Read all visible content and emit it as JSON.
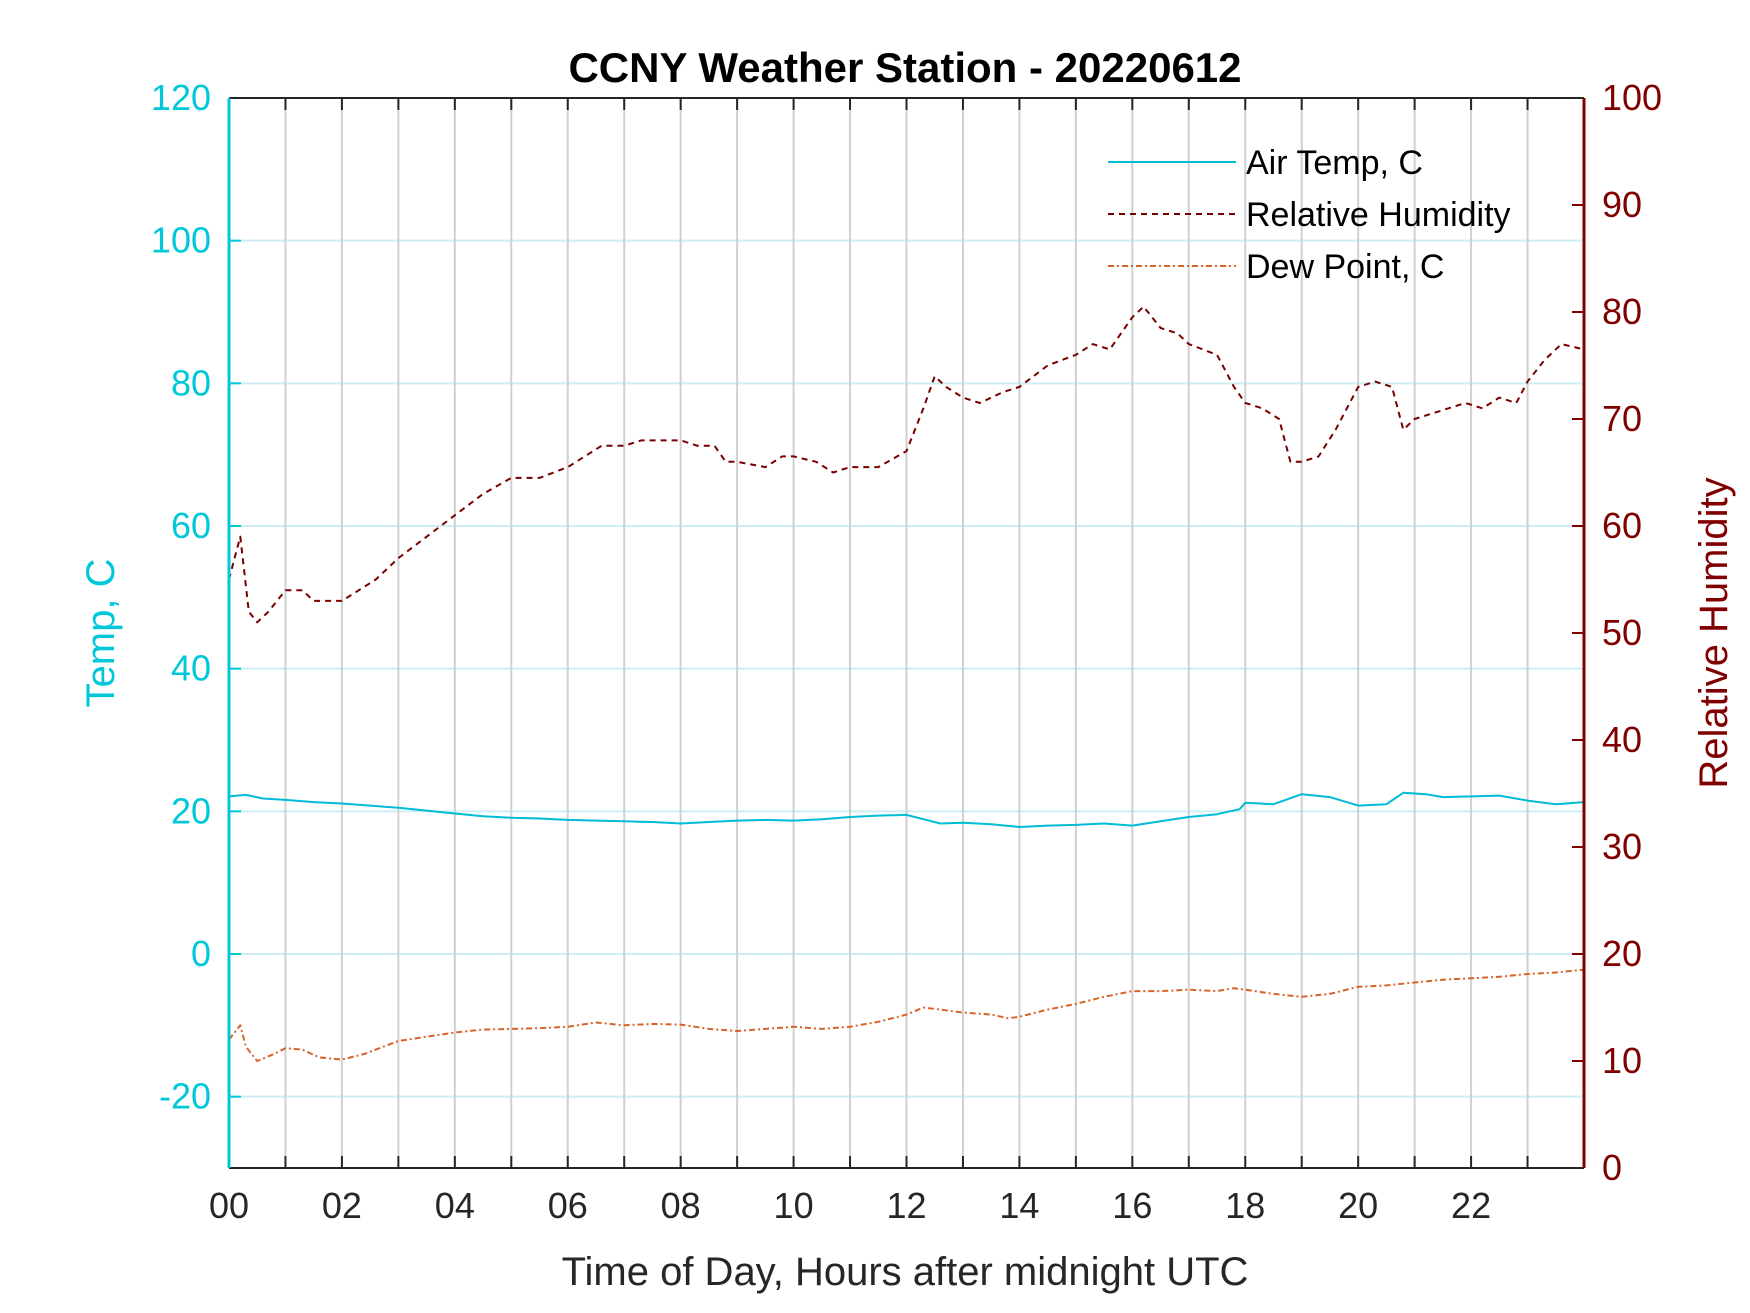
{
  "colors": {
    "air_temp": "#00bcd4",
    "relative_humidity": "#7a0000",
    "dew_point": "#d9622b",
    "left_axis": "#00c8d8",
    "right_axis": "#800000",
    "grid_vertical": "#d0d0d0",
    "grid_horizontal": "#cdeff4"
  },
  "chart_data": {
    "type": "line",
    "title": "CCNY Weather Station - 20220612",
    "xlabel": "Time of Day, Hours after midnight UTC",
    "ylabel_left": "Temp, C",
    "ylabel_right": "Relative Humidity",
    "xlim": [
      0,
      24
    ],
    "ylim_left": [
      -30,
      120
    ],
    "ylim_right": [
      0,
      100
    ],
    "x_tick_labels": [
      "00",
      "02",
      "04",
      "06",
      "08",
      "10",
      "12",
      "14",
      "16",
      "18",
      "20",
      "22"
    ],
    "y_left_ticks": [
      "-20",
      "0",
      "20",
      "40",
      "60",
      "80",
      "100",
      "120"
    ],
    "y_right_ticks": [
      "0",
      "10",
      "20",
      "30",
      "40",
      "50",
      "60",
      "70",
      "80",
      "90",
      "100"
    ],
    "grid": "on",
    "legend_position": "top-right",
    "series": [
      {
        "name": "Air Temp, C",
        "axis": "left",
        "style": "solid",
        "x": [
          0,
          0.3,
          0.6,
          1.0,
          1.5,
          2.0,
          2.5,
          3.0,
          3.5,
          4.0,
          4.5,
          5.0,
          5.5,
          6.0,
          6.5,
          7.0,
          7.5,
          8.0,
          8.5,
          9.0,
          9.5,
          10.0,
          10.5,
          11.0,
          11.5,
          12.0,
          12.3,
          12.6,
          13.0,
          13.5,
          14.0,
          14.5,
          15.0,
          15.5,
          16.0,
          16.5,
          17.0,
          17.5,
          17.9,
          18.0,
          18.5,
          19.0,
          19.5,
          20.0,
          20.5,
          20.8,
          21.2,
          21.5,
          22.0,
          22.5,
          23.0,
          23.5,
          24.0
        ],
        "y": [
          22.1,
          22.3,
          21.8,
          21.6,
          21.3,
          21.1,
          20.8,
          20.5,
          20.1,
          19.7,
          19.3,
          19.1,
          19.0,
          18.8,
          18.7,
          18.6,
          18.5,
          18.3,
          18.5,
          18.7,
          18.8,
          18.7,
          18.9,
          19.2,
          19.4,
          19.5,
          18.9,
          18.3,
          18.4,
          18.2,
          17.8,
          18.0,
          18.1,
          18.3,
          18.0,
          18.6,
          19.2,
          19.6,
          20.3,
          21.2,
          21.0,
          22.4,
          22.0,
          20.8,
          21.0,
          22.6,
          22.4,
          22.0,
          22.1,
          22.2,
          21.5,
          21.0,
          21.3
        ]
      },
      {
        "name": "Relative Humidity",
        "axis": "right",
        "style": "dashed",
        "x": [
          0,
          0.1,
          0.2,
          0.35,
          0.5,
          0.7,
          1.0,
          1.3,
          1.5,
          1.8,
          2.0,
          2.3,
          2.6,
          3.0,
          3.5,
          4.0,
          4.5,
          5.0,
          5.5,
          6.0,
          6.3,
          6.6,
          7.0,
          7.3,
          7.6,
          8.0,
          8.3,
          8.6,
          8.8,
          9.0,
          9.5,
          9.8,
          10.0,
          10.4,
          10.7,
          11.0,
          11.5,
          12.0,
          12.3,
          12.5,
          12.7,
          13.0,
          13.3,
          13.7,
          14.0,
          14.5,
          15.0,
          15.3,
          15.6,
          16.0,
          16.2,
          16.5,
          16.8,
          17.0,
          17.5,
          17.8,
          18.0,
          18.3,
          18.6,
          18.8,
          19.0,
          19.3,
          19.6,
          20.0,
          20.3,
          20.6,
          20.8,
          21.0,
          21.3,
          21.6,
          21.9,
          22.2,
          22.5,
          22.8,
          23.0,
          23.3,
          23.6,
          24.0
        ],
        "y": [
          55,
          57,
          59,
          52,
          51,
          52,
          54,
          54,
          53,
          53,
          53,
          54,
          55,
          57,
          59,
          61,
          63,
          64.5,
          64.5,
          65.5,
          66.5,
          67.5,
          67.5,
          68,
          68,
          68,
          67.5,
          67.5,
          66,
          66,
          65.5,
          66.5,
          66.5,
          66,
          65,
          65.5,
          65.5,
          67,
          71,
          74,
          73,
          72,
          71.5,
          72.5,
          73,
          75,
          76,
          77,
          76.5,
          79.5,
          80.5,
          78.5,
          78,
          77,
          76,
          73,
          71.5,
          71,
          70,
          66,
          66,
          66.5,
          69,
          73,
          73.5,
          73,
          69,
          70,
          70.5,
          71,
          71.5,
          71,
          72,
          71.5,
          73.5,
          75.5,
          77,
          76.5
        ]
      },
      {
        "name": "Dew Point, C",
        "axis": "left",
        "style": "dash-dot",
        "x": [
          0,
          0.1,
          0.2,
          0.3,
          0.5,
          0.8,
          1.0,
          1.3,
          1.6,
          2.0,
          2.4,
          3.0,
          3.5,
          4.0,
          4.5,
          5.0,
          5.5,
          6.0,
          6.5,
          7.0,
          7.5,
          8.0,
          8.5,
          9.0,
          9.5,
          10.0,
          10.5,
          11.0,
          11.5,
          12.0,
          12.3,
          12.6,
          13.0,
          13.5,
          13.8,
          14.0,
          14.5,
          15.0,
          15.5,
          16.0,
          16.5,
          17.0,
          17.5,
          17.8,
          18.0,
          18.5,
          19.0,
          19.5,
          20.0,
          20.5,
          21.0,
          21.5,
          22.0,
          22.5,
          23.0,
          23.5,
          24.0
        ],
        "y": [
          -12,
          -11,
          -10,
          -13,
          -15,
          -14,
          -13.2,
          -13.4,
          -14.5,
          -14.8,
          -14,
          -12.2,
          -11.6,
          -11,
          -10.6,
          -10.5,
          -10.4,
          -10.2,
          -9.6,
          -10,
          -9.8,
          -9.9,
          -10.5,
          -10.8,
          -10.5,
          -10.2,
          -10.5,
          -10.2,
          -9.5,
          -8.5,
          -7.5,
          -7.8,
          -8.2,
          -8.5,
          -9,
          -8.8,
          -7.8,
          -7,
          -6,
          -5.2,
          -5.2,
          -5.0,
          -5.2,
          -4.8,
          -5.0,
          -5.6,
          -6.0,
          -5.6,
          -4.6,
          -4.4,
          -4.0,
          -3.6,
          -3.4,
          -3.2,
          -2.8,
          -2.6,
          -2.2
        ]
      }
    ]
  }
}
